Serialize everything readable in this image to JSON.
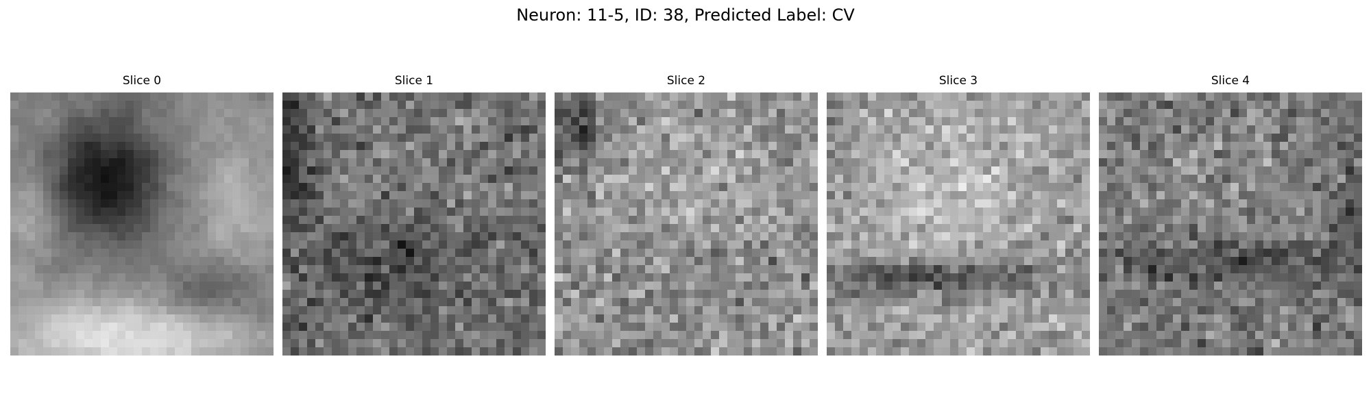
{
  "figure": {
    "title": "Neuron: 11-5, ID: 38, Predicted Label: CV",
    "colormap": "gray",
    "grid": {
      "rows": 32,
      "cols": 32
    }
  },
  "slices": [
    {
      "label": "Slice 0"
    },
    {
      "label": "Slice 1"
    },
    {
      "label": "Slice 2"
    },
    {
      "label": "Slice 3"
    },
    {
      "label": "Slice 4"
    }
  ]
}
